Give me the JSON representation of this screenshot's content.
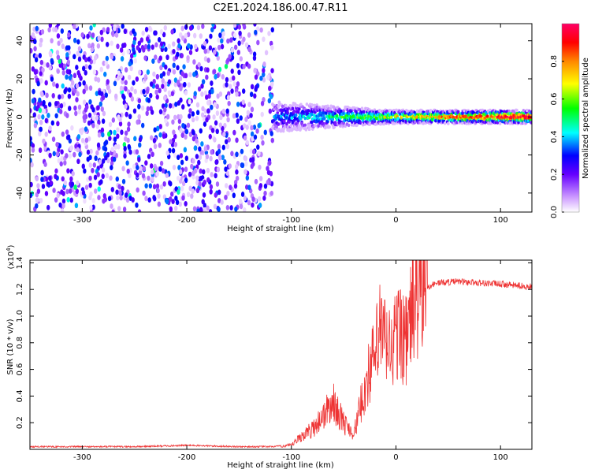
{
  "title": "C2E1.2024.186.00.47.R11",
  "chart_data": [
    {
      "type": "heatmap",
      "xlabel": "Height of straight line (km)",
      "ylabel": "Frequency (Hz)",
      "xlim": [
        -350,
        130
      ],
      "ylim": [
        -50,
        49
      ],
      "xticks": [
        -300,
        -200,
        -100,
        0,
        100
      ],
      "yticks": [
        -40,
        -20,
        0,
        20,
        40
      ],
      "colorbar": {
        "label": "Normalized spectral amplitude",
        "range": [
          0.0,
          1.0
        ],
        "ticks": [
          0.0,
          0.2,
          0.4,
          0.6,
          0.8
        ],
        "colors": [
          "#ffffff",
          "#cc99ff",
          "#6600ff",
          "#0000ff",
          "#00ffff",
          "#00ff00",
          "#ffff00",
          "#ff8800",
          "#ff0000",
          "#ff0066"
        ]
      },
      "regions": [
        {
          "x_range": [
            -350,
            -118
          ],
          "description_values": {
            "freq_range": [
              -50,
              49
            ],
            "amplitude": [
              0.0,
              0.4
            ]
          }
        },
        {
          "x_range": [
            -118,
            130
          ],
          "description_values": {
            "center_freq": 0,
            "amplitude": [
              0.2,
              1.0
            ]
          }
        }
      ]
    },
    {
      "type": "line",
      "xlabel": "Height of straight line (km)",
      "ylabel": "SNR (10 * v/v)",
      "y_multiplier": "(x10",
      "y_multiplier_exp": "4",
      "y_multiplier_close": ")",
      "xlim": [
        -350,
        130
      ],
      "ylim": [
        0,
        1.42
      ],
      "xticks": [
        -300,
        -200,
        -100,
        0,
        100
      ],
      "yticks": [
        0.2,
        0.4,
        0.6,
        0.8,
        1.0,
        1.2,
        1.4
      ],
      "color": "#ee3333",
      "series": [
        {
          "x": [
            -350,
            -300,
            -250,
            -200,
            -150,
            -120,
            -100,
            -90,
            -80,
            -70,
            -60,
            -50,
            -40,
            -30,
            -25,
            -20,
            -15,
            -10,
            -5,
            0,
            5,
            10,
            15,
            20,
            30,
            40,
            60,
            80,
            100,
            130
          ],
          "y": [
            0.02,
            0.02,
            0.02,
            0.03,
            0.02,
            0.02,
            0.03,
            0.1,
            0.15,
            0.25,
            0.35,
            0.2,
            0.12,
            0.45,
            0.6,
            0.7,
            0.9,
            0.8,
            0.75,
            0.85,
            0.9,
            0.8,
            1.05,
            1.15,
            1.22,
            1.25,
            1.26,
            1.25,
            1.24,
            1.22
          ]
        }
      ]
    }
  ]
}
